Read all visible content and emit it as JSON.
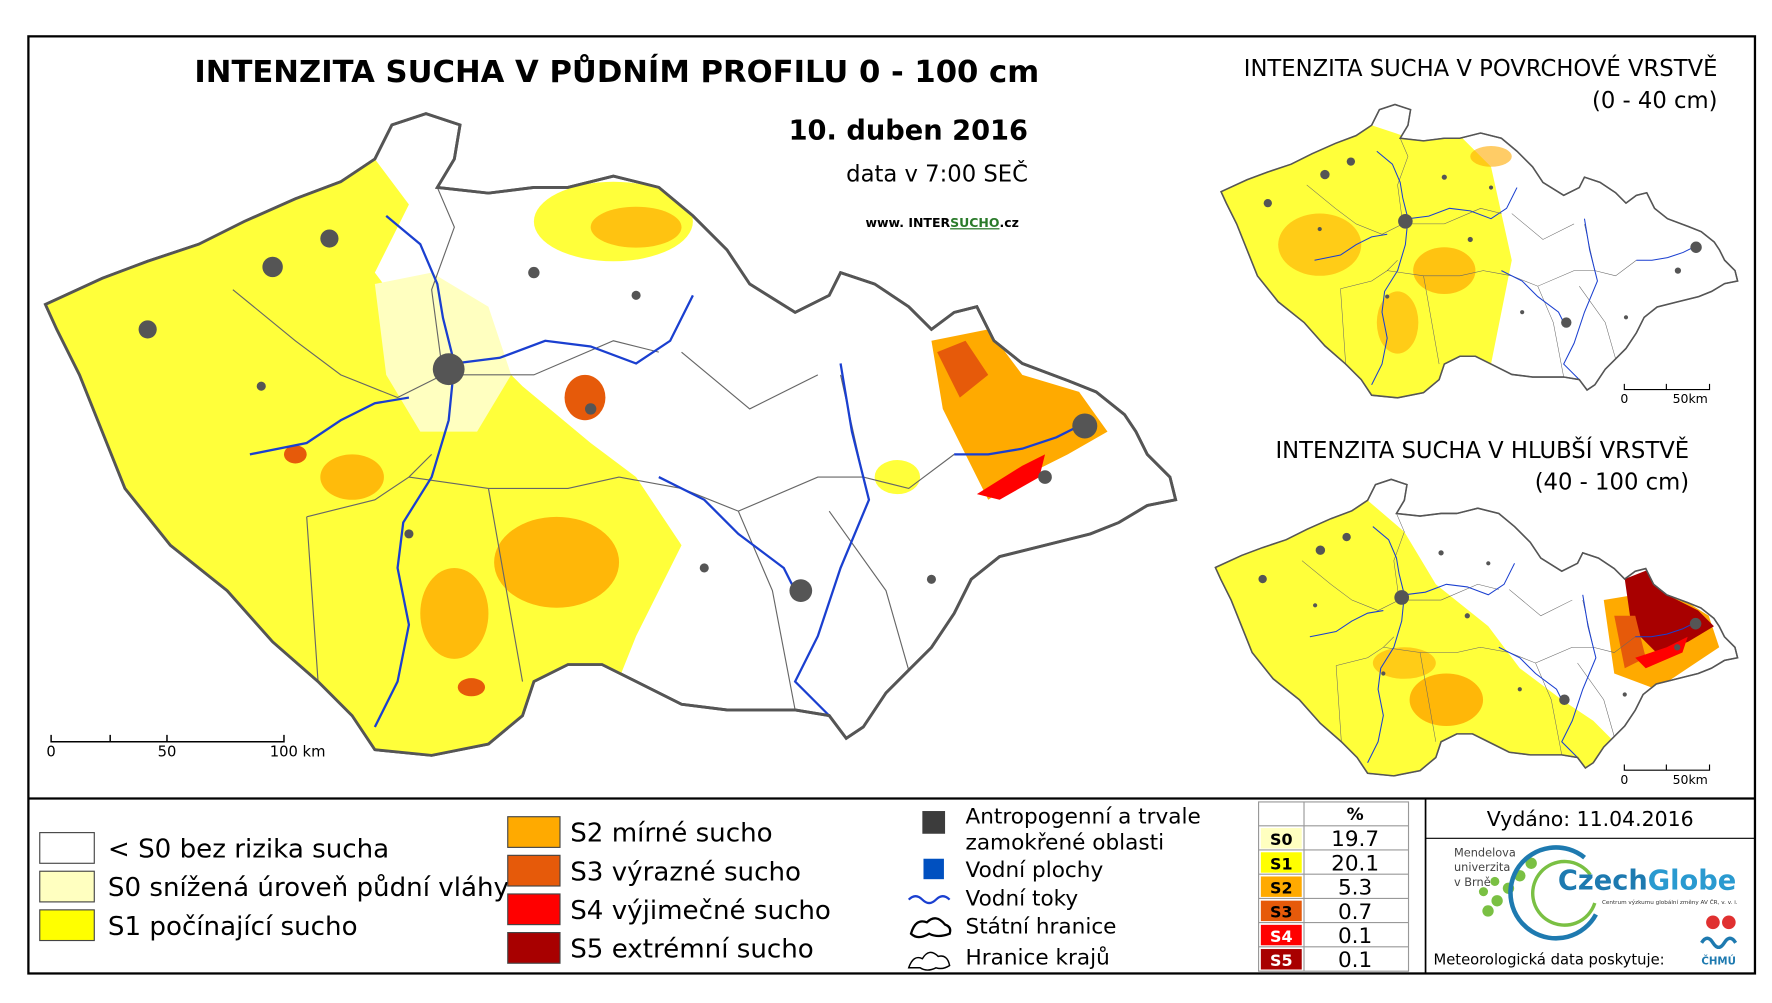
{
  "main_map": {
    "title": "INTENZITA SUCHA V PŮDNÍM PROFILU 0 - 100 cm",
    "date": "10. duben 2016",
    "data_time": "data v 7:00 SEČ",
    "website": {
      "prefix": "www. INTER",
      "highlight": "SUCHO",
      "suffix": ".cz"
    },
    "scale": [
      "0",
      "50",
      "100 km"
    ]
  },
  "inset_maps": [
    {
      "title": "INTENZITA SUCHA V POVRCHOVÉ VRSTVĚ",
      "depth": "(0 - 40 cm)",
      "scale": [
        "0",
        "50km"
      ]
    },
    {
      "title": "INTENZITA SUCHA V HLUBŠÍ VRSTVĚ",
      "depth": "(40 - 100 cm)",
      "scale": [
        "0",
        "50km"
      ]
    }
  ],
  "legend": {
    "drought_classes": [
      {
        "label": "< S0 bez rizika sucha",
        "color": "#ffffff"
      },
      {
        "label": "S0 snížená úroveň půdní vláhy",
        "color": "#ffffc0"
      },
      {
        "label": "S1 počínající sucho",
        "color": "#ffff00"
      },
      {
        "label": "S2 mírné sucho",
        "color": "#ffaa00"
      },
      {
        "label": "S3 výrazné sucho",
        "color": "#e65a0a"
      },
      {
        "label": "S4 výjimečné sucho",
        "color": "#ff0000"
      },
      {
        "label": "S5 extrémní sucho",
        "color": "#a80000"
      }
    ],
    "symbols": [
      {
        "label": [
          "Antropogenní a trvale",
          "zamokřené oblasti"
        ]
      },
      {
        "label": [
          "Vodní plochy"
        ]
      },
      {
        "label": [
          "Vodní toky"
        ]
      },
      {
        "label": [
          "Státní hranice"
        ]
      },
      {
        "label": [
          "Hranice krajů"
        ]
      }
    ]
  },
  "statistics": {
    "header": "%",
    "rows": [
      {
        "class": "S0",
        "percent": 19.7,
        "color": "#ffffc0"
      },
      {
        "class": "S1",
        "percent": 20.1,
        "color": "#ffff00"
      },
      {
        "class": "S2",
        "percent": 5.3,
        "color": "#ffaa00"
      },
      {
        "class": "S3",
        "percent": 0.7,
        "color": "#e65a0a"
      },
      {
        "class": "S4",
        "percent": 0.1,
        "color": "#ff0000"
      },
      {
        "class": "S5",
        "percent": 0.1,
        "color": "#a80000"
      }
    ]
  },
  "footer": {
    "issued": "Vydáno: 11.04.2016",
    "mendel": [
      "Mendelova",
      "univerzita",
      "v Brně"
    ],
    "czechglobe": {
      "name_a": "Czech",
      "name_b": "Globe",
      "subtitle": "Centrum výzkumu globální změny AV ČR, v. v. i."
    },
    "provider": "Meteorologická data poskytuje:",
    "chmu": "ČHMÚ"
  }
}
